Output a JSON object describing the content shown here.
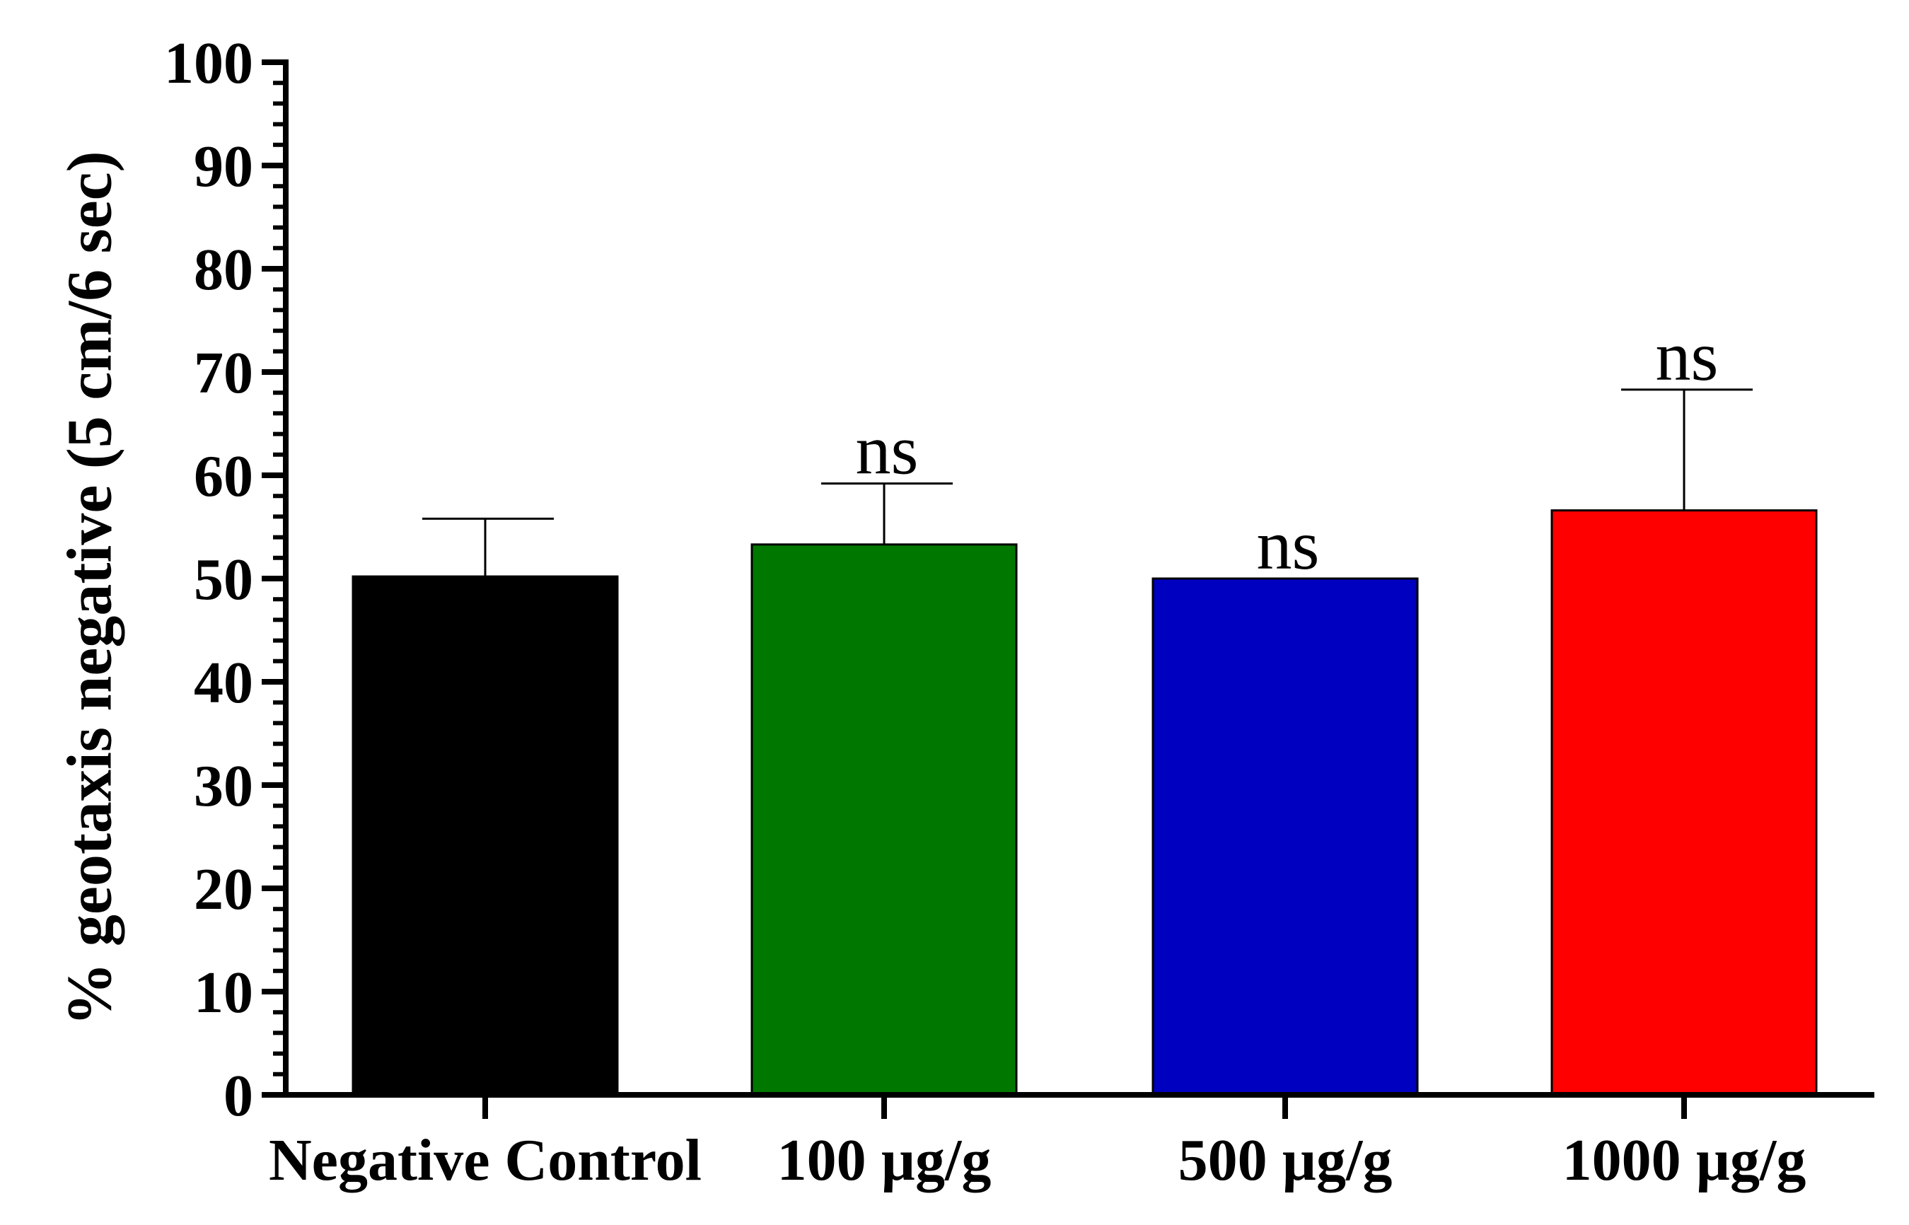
{
  "chart_data": {
    "type": "bar",
    "title": "",
    "xlabel": "",
    "ylabel": "% geotaxis negative (5 cm/6 sec)",
    "ylim": [
      0,
      100
    ],
    "yticks": [
      "0",
      "10",
      "20",
      "30",
      "40",
      "50",
      "60",
      "70",
      "80",
      "90",
      "100"
    ],
    "categories": [
      "Negative Control",
      "100 µg/g",
      "500 µg/g",
      "1000 µg/g"
    ],
    "values": [
      50.2,
      53.3,
      50.0,
      56.6
    ],
    "errors": [
      5.6,
      5.9,
      0,
      11.7
    ],
    "colors": [
      "#000000",
      "#007800",
      "#0000c0",
      "#ff0000"
    ],
    "annotations": [
      "",
      "ns",
      "ns",
      "ns"
    ],
    "grid": false,
    "legend": "none"
  }
}
